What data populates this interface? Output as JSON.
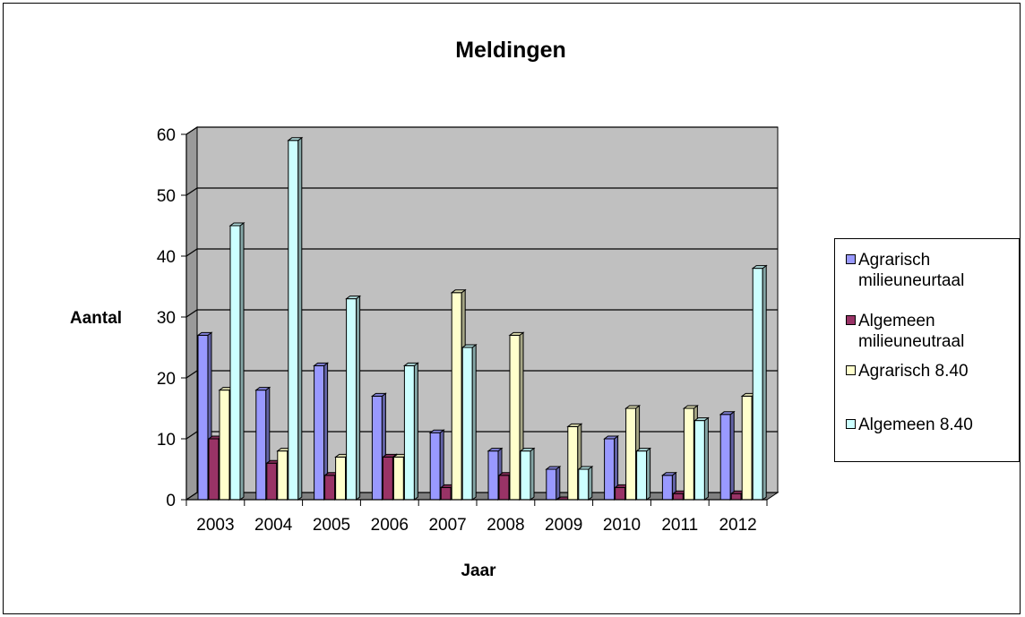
{
  "chart_data": {
    "type": "bar",
    "title": "Meldingen",
    "xlabel": "Jaar",
    "ylabel": "Aantal",
    "ylim": [
      0,
      60
    ],
    "yticks": [
      0,
      10,
      20,
      30,
      40,
      50,
      60
    ],
    "grid": true,
    "legend_position": "right",
    "categories": [
      "2003",
      "2004",
      "2005",
      "2006",
      "2007",
      "2008",
      "2009",
      "2010",
      "2011",
      "2012"
    ],
    "series": [
      {
        "name": "Agrarisch milieuneurtaal",
        "color": "#9999FF",
        "values": [
          27,
          18,
          22,
          17,
          11,
          8,
          5,
          10,
          4,
          14
        ]
      },
      {
        "name": "Algemeen milieuneutraal",
        "color": "#993366",
        "values": [
          10,
          6,
          4,
          7,
          2,
          4,
          0,
          2,
          1,
          1
        ]
      },
      {
        "name": "Agrarisch 8.40",
        "color": "#FFFFCC",
        "values": [
          18,
          8,
          7,
          7,
          34,
          27,
          12,
          15,
          15,
          17
        ]
      },
      {
        "name": "Algemeen 8.40",
        "color": "#CCFFFF",
        "values": [
          45,
          59,
          33,
          22,
          25,
          8,
          5,
          8,
          13,
          38
        ]
      }
    ]
  }
}
